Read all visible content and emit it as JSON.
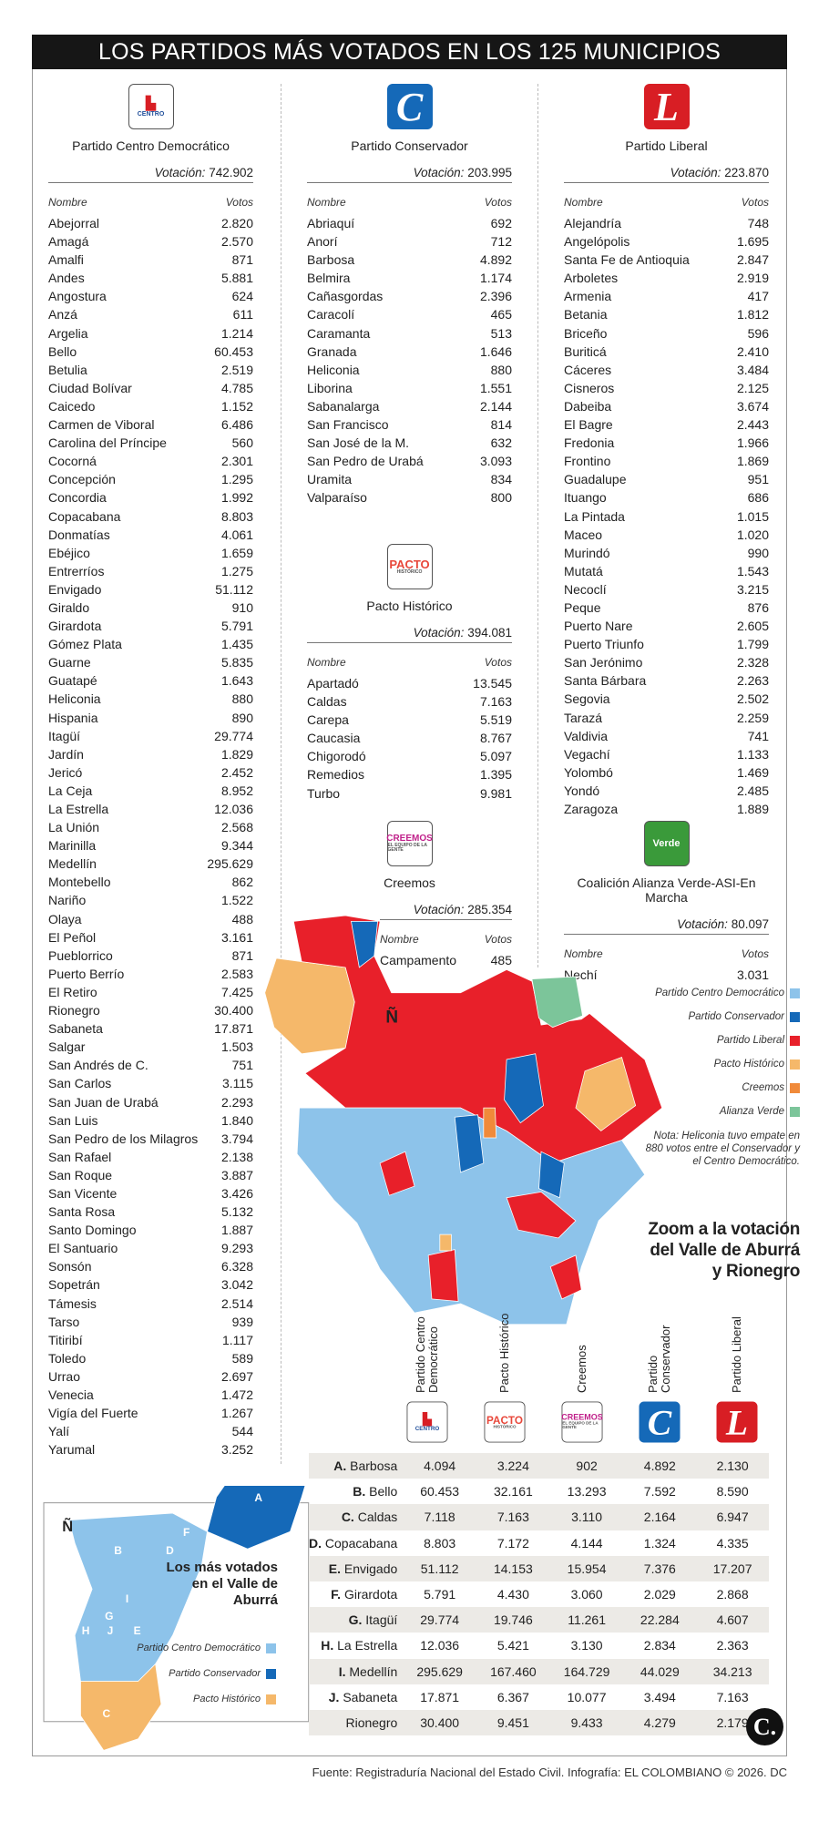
{
  "title": "LOS PARTIDOS MÁS VOTADOS EN LOS 125 MUNICIPIOS",
  "labels": {
    "votacion": "Votación:",
    "nombre": "Nombre",
    "votos": "Votos"
  },
  "colors": {
    "centro_democratico": "#8dc3ea",
    "conservador": "#1569b8",
    "liberal": "#e8202a",
    "pacto": "#f5b86a",
    "creemos": "#f08a3a",
    "verde": "#7cc59a"
  },
  "parties": {
    "cd": {
      "name": "Partido Centro Democrático",
      "logo_text": "CENTRO DEMOCRÁTICO",
      "total": "742.902",
      "rows": [
        [
          "Abejorral",
          "2.820"
        ],
        [
          "Amagá",
          "2.570"
        ],
        [
          "Amalfi",
          "871"
        ],
        [
          "Andes",
          "5.881"
        ],
        [
          "Angostura",
          "624"
        ],
        [
          "Anzá",
          "611"
        ],
        [
          "Argelia",
          "1.214"
        ],
        [
          "Bello",
          "60.453"
        ],
        [
          "Betulia",
          "2.519"
        ],
        [
          "Ciudad Bolívar",
          "4.785"
        ],
        [
          "Caicedo",
          "1.152"
        ],
        [
          "Carmen de Viboral",
          "6.486"
        ],
        [
          "Carolina del Príncipe",
          "560"
        ],
        [
          "Cocorná",
          "2.301"
        ],
        [
          "Concepción",
          "1.295"
        ],
        [
          "Concordia",
          "1.992"
        ],
        [
          "Copacabana",
          "8.803"
        ],
        [
          "Donmatías",
          "4.061"
        ],
        [
          "Ebéjico",
          "1.659"
        ],
        [
          "Entrerríos",
          "1.275"
        ],
        [
          "Envigado",
          "51.112"
        ],
        [
          "Giraldo",
          "910"
        ],
        [
          "Girardota",
          "5.791"
        ],
        [
          "Gómez Plata",
          "1.435"
        ],
        [
          "Guarne",
          "5.835"
        ],
        [
          "Guatapé",
          "1.643"
        ],
        [
          "Heliconia",
          "880"
        ],
        [
          "Hispania",
          "890"
        ],
        [
          "Itagüí",
          "29.774"
        ],
        [
          "Jardín",
          "1.829"
        ],
        [
          "Jericó",
          "2.452"
        ],
        [
          "La Ceja",
          "8.952"
        ],
        [
          "La Estrella",
          "12.036"
        ],
        [
          "La Unión",
          "2.568"
        ],
        [
          "Marinilla",
          "9.344"
        ],
        [
          "Medellín",
          "295.629"
        ],
        [
          "Montebello",
          "862"
        ],
        [
          "Nariño",
          "1.522"
        ],
        [
          "Olaya",
          "488"
        ],
        [
          "El Peñol",
          "3.161"
        ],
        [
          "Pueblorrico",
          "871"
        ],
        [
          "Puerto Berrío",
          "2.583"
        ],
        [
          "El Retiro",
          "7.425"
        ],
        [
          "Rionegro",
          "30.400"
        ],
        [
          "Sabaneta",
          "17.871"
        ],
        [
          "Salgar",
          "1.503"
        ],
        [
          "San Andrés de C.",
          "751"
        ],
        [
          "San Carlos",
          "3.115"
        ],
        [
          "San Juan de Urabá",
          "2.293"
        ],
        [
          "San Luis",
          "1.840"
        ],
        [
          "San Pedro de los Milagros",
          "3.794"
        ],
        [
          "San Rafael",
          "2.138"
        ],
        [
          "San Roque",
          "3.887"
        ],
        [
          "San Vicente",
          "3.426"
        ],
        [
          "Santa Rosa",
          "5.132"
        ],
        [
          "Santo Domingo",
          "1.887"
        ],
        [
          "El Santuario",
          "9.293"
        ],
        [
          "Sonsón",
          "6.328"
        ],
        [
          "Sopetrán",
          "3.042"
        ],
        [
          "Támesis",
          "2.514"
        ],
        [
          "Tarso",
          "939"
        ],
        [
          "Titiribí",
          "1.117"
        ],
        [
          "Toledo",
          "589"
        ],
        [
          "Urrao",
          "2.697"
        ],
        [
          "Venecia",
          "1.472"
        ],
        [
          "Vigía del Fuerte",
          "1.267"
        ],
        [
          "Yalí",
          "544"
        ],
        [
          "Yarumal",
          "3.252"
        ]
      ]
    },
    "con": {
      "name": "Partido Conservador",
      "logo_text": "C",
      "total": "203.995",
      "rows": [
        [
          "Abriaquí",
          "692"
        ],
        [
          "Anorí",
          "712"
        ],
        [
          "Barbosa",
          "4.892"
        ],
        [
          "Belmira",
          "1.174"
        ],
        [
          "Cañasgordas",
          "2.396"
        ],
        [
          "Caracolí",
          "465"
        ],
        [
          "Caramanta",
          "513"
        ],
        [
          "Granada",
          "1.646"
        ],
        [
          "Heliconia",
          "880"
        ],
        [
          "Liborina",
          "1.551"
        ],
        [
          "Sabanalarga",
          "2.144"
        ],
        [
          "San Francisco",
          "814"
        ],
        [
          "San José de la M.",
          "632"
        ],
        [
          "San Pedro de Urabá",
          "3.093"
        ],
        [
          "Uramita",
          "834"
        ],
        [
          "Valparaíso",
          "800"
        ]
      ]
    },
    "lib": {
      "name": "Partido Liberal",
      "logo_text": "L",
      "total": "223.870",
      "rows": [
        [
          "Alejandría",
          "748"
        ],
        [
          "Angelópolis",
          "1.695"
        ],
        [
          "Santa Fe de Antioquia",
          "2.847"
        ],
        [
          "Arboletes",
          "2.919"
        ],
        [
          "Armenia",
          "417"
        ],
        [
          "Betania",
          "1.812"
        ],
        [
          "Briceño",
          "596"
        ],
        [
          "Buriticá",
          "2.410"
        ],
        [
          "Cáceres",
          "3.484"
        ],
        [
          "Cisneros",
          "2.125"
        ],
        [
          "Dabeiba",
          "3.674"
        ],
        [
          "El Bagre",
          "2.443"
        ],
        [
          "Fredonia",
          "1.966"
        ],
        [
          "Frontino",
          "1.869"
        ],
        [
          "Guadalupe",
          "951"
        ],
        [
          "Ituango",
          "686"
        ],
        [
          "La Pintada",
          "1.015"
        ],
        [
          "Maceo",
          "1.020"
        ],
        [
          "Murindó",
          "990"
        ],
        [
          "Mutatá",
          "1.543"
        ],
        [
          "Necoclí",
          "3.215"
        ],
        [
          "Peque",
          "876"
        ],
        [
          "Puerto Nare",
          "2.605"
        ],
        [
          "Puerto Triunfo",
          "1.799"
        ],
        [
          "San Jerónimo",
          "2.328"
        ],
        [
          "Santa Bárbara",
          "2.263"
        ],
        [
          "Segovia",
          "2.502"
        ],
        [
          "Tarazá",
          "2.259"
        ],
        [
          "Valdivia",
          "741"
        ],
        [
          "Vegachí",
          "1.133"
        ],
        [
          "Yolombó",
          "1.469"
        ],
        [
          "Yondó",
          "2.485"
        ],
        [
          "Zaragoza",
          "1.889"
        ]
      ]
    },
    "pacto": {
      "name": "Pacto Histórico",
      "logo_text": "PACTO",
      "logo_sub": "HISTÓRICO",
      "total": "394.081",
      "rows": [
        [
          "Apartadó",
          "13.545"
        ],
        [
          "Caldas",
          "7.163"
        ],
        [
          "Carepa",
          "5.519"
        ],
        [
          "Caucasia",
          "8.767"
        ],
        [
          "Chigorodó",
          "5.097"
        ],
        [
          "Remedios",
          "1.395"
        ],
        [
          "Turbo",
          "9.981"
        ]
      ]
    },
    "creemos": {
      "name": "Creemos",
      "logo_text": "CREEMOS",
      "logo_sub": "EL EQUIPO DE LA GENTE",
      "total": "285.354",
      "rows": [
        [
          "Campamento",
          "485"
        ]
      ]
    },
    "verde": {
      "name": "Coalición Alianza Verde-ASI-En Marcha",
      "logo_text": "Verde",
      "total": "80.097",
      "rows": [
        [
          "Nechí",
          "3.031"
        ]
      ]
    }
  },
  "map": {
    "north": "Ñ",
    "legend": [
      "Partido Centro Democrático",
      "Partido Conservador",
      "Partido Liberal",
      "Pacto Histórico",
      "Creemos",
      "Alianza Verde"
    ],
    "note": "Nota: Heliconia tuvo empate en 880 votos entre el Conservador y el Centro Democrático."
  },
  "zoom_title": "Zoom a la votación del Valle de Aburrá y Rionegro",
  "aburra_table": {
    "columns": [
      "Partido Centro Democrático",
      "Pacto Histórico",
      "Creemos",
      "Partido Conservador",
      "Partido Liberal"
    ],
    "rows": [
      [
        "A.",
        "Barbosa",
        "4.094",
        "3.224",
        "902",
        "4.892",
        "2.130"
      ],
      [
        "B.",
        "Bello",
        "60.453",
        "32.161",
        "13.293",
        "7.592",
        "8.590"
      ],
      [
        "C.",
        "Caldas",
        "7.118",
        "7.163",
        "3.110",
        "2.164",
        "6.947"
      ],
      [
        "D.",
        "Copacabana",
        "8.803",
        "7.172",
        "4.144",
        "1.324",
        "4.335"
      ],
      [
        "E.",
        "Envigado",
        "51.112",
        "14.153",
        "15.954",
        "7.376",
        "17.207"
      ],
      [
        "F.",
        "Girardota",
        "5.791",
        "4.430",
        "3.060",
        "2.029",
        "2.868"
      ],
      [
        "G.",
        "Itagüí",
        "29.774",
        "19.746",
        "11.261",
        "22.284",
        "4.607"
      ],
      [
        "H.",
        "La Estrella",
        "12.036",
        "5.421",
        "3.130",
        "2.834",
        "2.363"
      ],
      [
        "I.",
        "Medellín",
        "295.629",
        "167.460",
        "164.729",
        "44.029",
        "34.213"
      ],
      [
        "J.",
        "Sabaneta",
        "17.871",
        "6.367",
        "10.077",
        "3.494",
        "7.163"
      ],
      [
        "",
        "Rionegro",
        "30.400",
        "9.451",
        "9.433",
        "4.279",
        "2.179"
      ]
    ]
  },
  "aburra_map": {
    "title": "Los más votados en el Valle de Aburrá",
    "north": "Ñ",
    "labels": [
      "A",
      "B",
      "C",
      "D",
      "E",
      "F",
      "G",
      "H",
      "I",
      "J"
    ],
    "legend": [
      "Partido Centro Democrático",
      "Partido Conservador",
      "Pacto Histórico"
    ]
  },
  "footer": "Fuente: Registraduría Nacional del Estado Civil. Infografía: EL COLOMBIANO © 2026. DC",
  "brand_logo": "C."
}
